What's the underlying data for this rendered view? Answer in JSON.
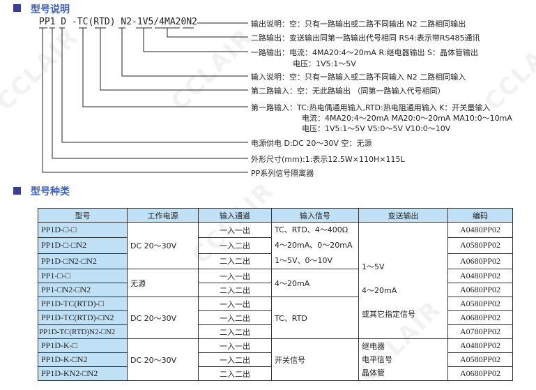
{
  "watermark": "CCLAIR",
  "section1": {
    "title": "型号说明",
    "code": "PP1 D -TC(RTD) N2-1V5/4MA20N2",
    "descriptions": [
      "输出说明：空：只有一路输出或二路不同输出  N2 二路相同输出",
      "二路输出：变送输出同第一路输出代号相同  RS4:表示带RS485通讯",
      "一路输出：电流：4MA20:4～20mA  R:继电器输出 S：晶体管输出",
      "电压：1V5:1～5V",
      "输入说明：空：只有一路输入或二路不同输入  N2 二路相同输入",
      "第二路输入：空：无此路输出 （同第一路输入代号相同）",
      "第一路输入：TC:热电偶通用输入,RTD:热电阻通用输入 K：开关量输入",
      "电流：4MA20:4～20mA  MA20:0～20mA  MA10:0～10mA",
      "电压：1V5:1～5V  V5:0～5V   V10:0～10V",
      "电源供电 D:DC 20～30V  空：无源",
      "外形尺寸(mm):1:表示12.5W×110H×115L",
      "PP系列信号隔离器"
    ]
  },
  "section2": {
    "title": "型号种类",
    "headers": [
      "型号",
      "工作电源",
      "输入通道",
      "输入信号",
      "变送输出",
      "编码"
    ],
    "models": [
      "PP1D-□-□",
      "PP1D-□-□N2",
      "PP1D-□N2-□N2",
      "PP1-□-□",
      "PP1-□N2-□N2",
      "PP1D-TC(RTD)-□",
      "PP1D-TC(RTD)-□N2",
      "PP1D-TC(RTD)N2-□N2",
      "PP1D-K-□",
      "PP1D-K-□N2",
      "PP1D-KN2-□N2"
    ],
    "channels": [
      "一入一出",
      "一入二出",
      "二入二出",
      "一入一出",
      "二入二出",
      "一入一出",
      "一入二出",
      "二入二出",
      "一入一出",
      "一入二出",
      "二入二出"
    ],
    "codes": [
      "A0480PP02",
      "A0580PP02",
      "A0680PP02",
      "A0480PP02",
      "A0680PP02",
      "A0580PP02",
      "A0680PP02",
      "A0780PP02",
      "A0480PP02",
      "A0580PP02",
      "A0680PP02"
    ],
    "power": [
      "DC 20～30V",
      "无源",
      "DC 20～30V",
      "DC 20～30V"
    ],
    "signals": {
      "g1": [
        "TC、RTD、4～400Ω",
        "4～20mA、0～20mA",
        "1～5V、0～10V"
      ],
      "g2": "4～20mA",
      "g3": "TC、RTD",
      "g4": "开关信号"
    },
    "outputs": {
      "g1": [
        "1～5V",
        "4～20mA",
        "或其它指定信号"
      ],
      "g2": [
        "继电器",
        "电平信号",
        "晶体管"
      ]
    }
  }
}
